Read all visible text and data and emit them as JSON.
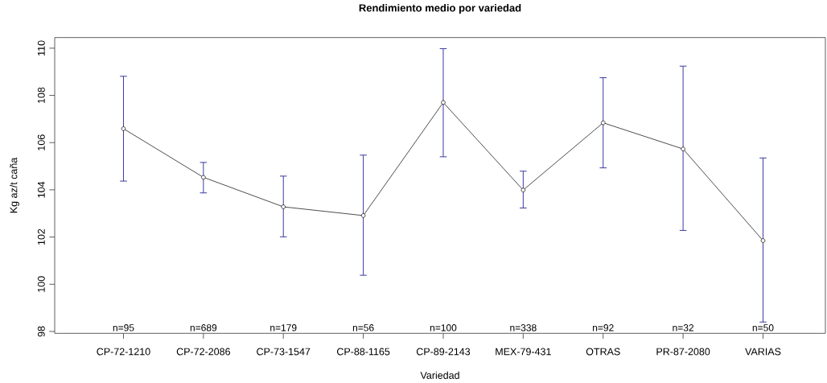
{
  "chart_data": {
    "type": "line",
    "title": "Rendimiento medio por variedad",
    "xlabel": "Variedad",
    "ylabel": "Kg az/t caña",
    "categories": [
      "CP-72-1210",
      "CP-72-2086",
      "CP-73-1547",
      "CP-88-1165",
      "CP-89-2143",
      "MEX-79-431",
      "OTRAS",
      "PR-87-2080",
      "VARIAS"
    ],
    "values": [
      106.59,
      104.53,
      103.28,
      102.91,
      107.7,
      103.99,
      106.84,
      105.73,
      101.85
    ],
    "errors": [
      [
        104.37,
        108.81
      ],
      [
        103.87,
        105.16
      ],
      [
        102.01,
        104.58
      ],
      [
        100.38,
        105.47
      ],
      [
        105.4,
        109.98
      ],
      [
        103.23,
        104.79
      ],
      [
        104.93,
        108.75
      ],
      [
        102.28,
        109.24
      ],
      [
        98.4,
        105.35
      ]
    ],
    "color": "#000000",
    "marker": "circle",
    "line_style": "solid",
    "ylim": [
      97.92,
      110.45
    ],
    "yticks": [
      98,
      100,
      102,
      104,
      106,
      108,
      110
    ],
    "annotations": [
      "n=95",
      "n=689",
      "n=179",
      "n=56",
      "n=100",
      "n=338",
      "n=92",
      "n=32",
      "n=50"
    ]
  }
}
